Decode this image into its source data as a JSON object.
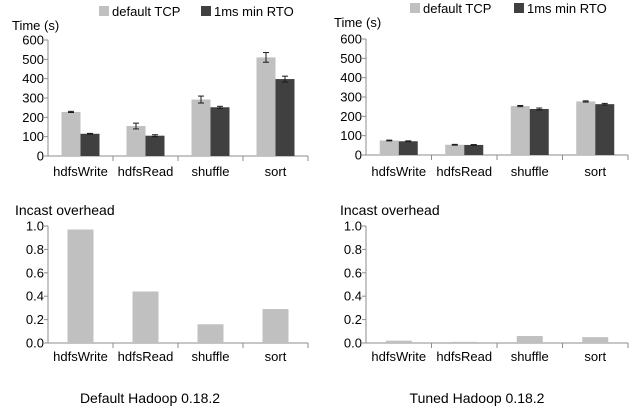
{
  "legend": {
    "series_a": "default TCP",
    "series_b": "1ms min RTO"
  },
  "captions": {
    "left": "Default Hadoop 0.18.2",
    "right": "Tuned Hadoop 0.18.2"
  },
  "colors": {
    "series_a": "#c0c0c0",
    "series_b": "#404040",
    "axis": "#8c8c8c",
    "error": "#1a1a1a"
  },
  "chart_data": [
    {
      "type": "bar",
      "title": "",
      "ylabel": "Time (s)",
      "ylim": [
        0,
        600
      ],
      "yticks": [
        0,
        100,
        200,
        300,
        400,
        500,
        600
      ],
      "categories": [
        "hdfsWrite",
        "hdfsRead",
        "shuffle",
        "sort"
      ],
      "series": [
        {
          "name": "default TCP",
          "values": [
            228,
            155,
            292,
            510
          ],
          "errors": [
            3,
            15,
            18,
            25
          ]
        },
        {
          "name": "1ms min RTO",
          "values": [
            115,
            105,
            252,
            398
          ],
          "errors": [
            2,
            5,
            5,
            15
          ]
        }
      ],
      "legend": "top"
    },
    {
      "type": "bar",
      "title": "",
      "ylabel": "Time (s)",
      "ylim": [
        0,
        600
      ],
      "yticks": [
        0,
        100,
        200,
        300,
        400,
        500,
        600
      ],
      "categories": [
        "hdfsWrite",
        "hdfsRead",
        "shuffle",
        "sort"
      ],
      "series": [
        {
          "name": "default TCP",
          "values": [
            75,
            53,
            253,
            277
          ],
          "errors": [
            2,
            2,
            3,
            3
          ]
        },
        {
          "name": "1ms min RTO",
          "values": [
            71,
            52,
            238,
            263
          ],
          "errors": [
            2,
            2,
            5,
            4
          ]
        }
      ],
      "legend": "top"
    },
    {
      "type": "bar",
      "title": "Incast overhead",
      "ylabel": "",
      "ylim": [
        0,
        1.0
      ],
      "yticks": [
        "0.0",
        "0.2",
        "0.4",
        "0.6",
        "0.8",
        "1.0"
      ],
      "categories": [
        "hdfsWrite",
        "hdfsRead",
        "shuffle",
        "sort"
      ],
      "series": [
        {
          "values": [
            0.97,
            0.44,
            0.16,
            0.29
          ]
        }
      ]
    },
    {
      "type": "bar",
      "title": "Incast overhead",
      "ylabel": "",
      "ylim": [
        0,
        1.0
      ],
      "yticks": [
        "0.0",
        "0.2",
        "0.4",
        "0.6",
        "0.8",
        "1.0"
      ],
      "categories": [
        "hdfsWrite",
        "hdfsRead",
        "shuffle",
        "sort"
      ],
      "series": [
        {
          "values": [
            0.02,
            0.01,
            0.06,
            0.05
          ]
        }
      ]
    }
  ]
}
